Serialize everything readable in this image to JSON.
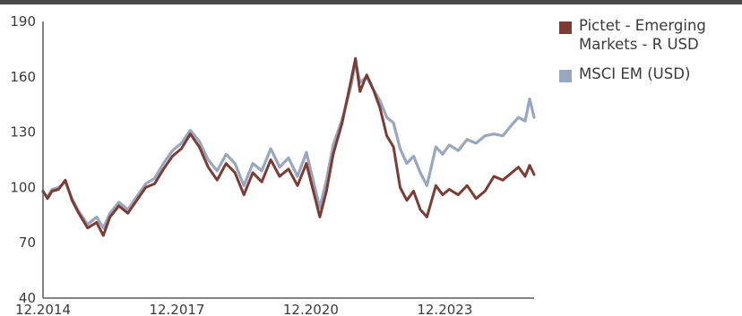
{
  "colors": {
    "pictet": "#7b3d33",
    "msci": "#98a6c0",
    "axis": "#5a5a5a"
  },
  "chart_data": {
    "type": "line",
    "title": "",
    "xlabel": "",
    "ylabel": "",
    "xlim": [
      2014.0,
      2025.0
    ],
    "ylim": [
      40,
      190
    ],
    "yticks": [
      {
        "label": "190",
        "value": 190
      },
      {
        "label": "160",
        "value": 160
      },
      {
        "label": "130",
        "value": 130
      },
      {
        "label": "100",
        "value": 100
      },
      {
        "label": "70",
        "value": 70
      },
      {
        "label": "40",
        "value": 40
      }
    ],
    "xticks": [
      {
        "label": "12.2014",
        "value": 2014.0
      },
      {
        "label": "12.2017",
        "value": 2017.0
      },
      {
        "label": "12.2020",
        "value": 2020.0
      },
      {
        "label": "12.2023",
        "value": 2023.0
      }
    ],
    "legend_position": "right",
    "grid": false,
    "series": [
      {
        "name": "MSCI EM (USD)",
        "color": "#98a6c0",
        "x": [
          2014.0,
          2014.1,
          2014.2,
          2014.35,
          2014.5,
          2014.65,
          2014.8,
          2015.0,
          2015.2,
          2015.35,
          2015.5,
          2015.7,
          2015.9,
          2016.1,
          2016.3,
          2016.5,
          2016.7,
          2016.9,
          2017.1,
          2017.3,
          2017.5,
          2017.7,
          2017.9,
          2018.1,
          2018.3,
          2018.5,
          2018.7,
          2018.9,
          2019.1,
          2019.3,
          2019.5,
          2019.7,
          2019.9,
          2020.2,
          2020.35,
          2020.5,
          2020.7,
          2020.9,
          2021.0,
          2021.1,
          2021.25,
          2021.4,
          2021.55,
          2021.7,
          2021.85,
          2022.0,
          2022.15,
          2022.3,
          2022.45,
          2022.6,
          2022.8,
          2022.95,
          2023.1,
          2023.3,
          2023.5,
          2023.7,
          2023.9,
          2024.1,
          2024.3,
          2024.5,
          2024.65,
          2024.8,
          2024.9,
          2025.0
        ],
        "y": [
          97,
          95,
          99,
          100,
          103,
          94,
          87,
          80,
          84,
          78,
          86,
          92,
          88,
          95,
          102,
          105,
          113,
          120,
          124,
          131,
          125,
          115,
          109,
          118,
          113,
          101,
          113,
          109,
          121,
          111,
          116,
          106,
          119,
          89,
          104,
          123,
          137,
          155,
          168,
          157,
          160,
          153,
          147,
          138,
          135,
          121,
          113,
          117,
          108,
          101,
          122,
          118,
          123,
          120,
          126,
          124,
          128,
          129,
          128,
          134,
          138,
          136,
          148,
          138
        ]
      },
      {
        "name": "Pictet - Emerging Markets - R USD",
        "color": "#7b3d33",
        "x": [
          2014.0,
          2014.1,
          2014.2,
          2014.35,
          2014.5,
          2014.65,
          2014.8,
          2015.0,
          2015.2,
          2015.35,
          2015.5,
          2015.7,
          2015.9,
          2016.1,
          2016.3,
          2016.5,
          2016.7,
          2016.9,
          2017.1,
          2017.3,
          2017.5,
          2017.7,
          2017.9,
          2018.1,
          2018.3,
          2018.5,
          2018.7,
          2018.9,
          2019.1,
          2019.3,
          2019.5,
          2019.7,
          2019.9,
          2020.2,
          2020.35,
          2020.5,
          2020.7,
          2020.9,
          2021.0,
          2021.1,
          2021.25,
          2021.4,
          2021.55,
          2021.7,
          2021.85,
          2022.0,
          2022.15,
          2022.3,
          2022.45,
          2022.6,
          2022.8,
          2022.95,
          2023.1,
          2023.3,
          2023.5,
          2023.7,
          2023.9,
          2024.1,
          2024.3,
          2024.5,
          2024.65,
          2024.8,
          2024.9,
          2025.0
        ],
        "y": [
          98,
          94,
          98,
          99,
          104,
          93,
          86,
          78,
          81,
          74,
          84,
          90,
          86,
          93,
          100,
          102,
          110,
          117,
          121,
          129,
          122,
          111,
          104,
          113,
          108,
          96,
          108,
          103,
          115,
          106,
          110,
          101,
          113,
          84,
          98,
          118,
          135,
          158,
          170,
          152,
          161,
          153,
          143,
          128,
          122,
          100,
          93,
          98,
          88,
          84,
          101,
          96,
          99,
          96,
          101,
          94,
          98,
          106,
          104,
          108,
          111,
          106,
          112,
          107
        ]
      }
    ]
  }
}
